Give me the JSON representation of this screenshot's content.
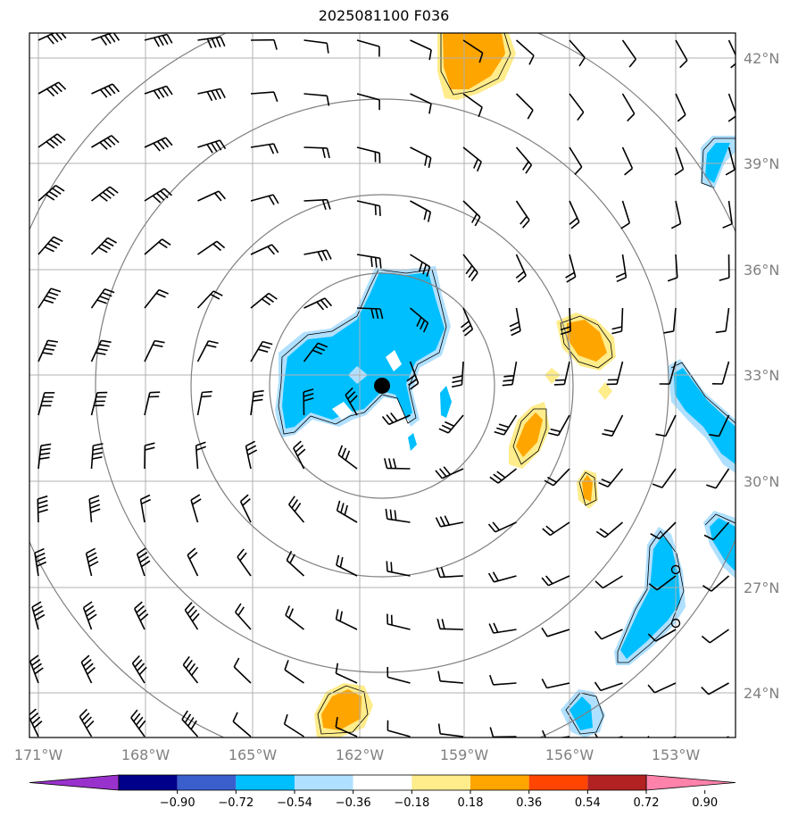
{
  "title": "2025081100 F036",
  "lat_labels": [
    "42°N",
    "39°N",
    "36°N",
    "33°N",
    "30°N",
    "27°N",
    "24°N"
  ],
  "lon_labels": [
    "171°W",
    "168°W",
    "165°W",
    "162°W",
    "159°W",
    "156°W",
    "153°W"
  ],
  "colorbar": {
    "ticks": [
      "−0.90",
      "−0.72",
      "−0.54",
      "−0.36",
      "−0.18",
      "0.18",
      "0.36",
      "0.54",
      "0.72",
      "0.90"
    ],
    "colors": [
      "#9932cc",
      "#00008b",
      "#3a5fcd",
      "#00bfff",
      "#b0e0ff",
      "#ffffff",
      "#ffec8b",
      "#ffa500",
      "#ff4500",
      "#b22222",
      "#ff82ab"
    ]
  },
  "storm_center_marker": "filled-black-circle",
  "range_rings": 4,
  "barb_color": "#000000",
  "ring_color": "#808080",
  "grid_color": "#b0b0b0"
}
